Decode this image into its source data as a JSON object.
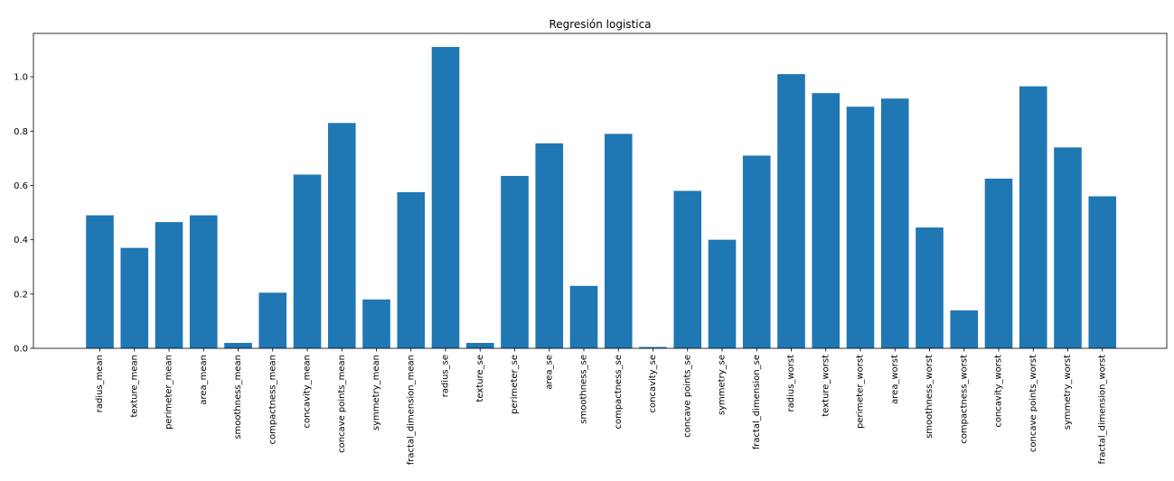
{
  "chart_data": {
    "type": "bar",
    "title": "Regresión logistica",
    "xlabel": "",
    "ylabel": "",
    "ylim": [
      0,
      1.16
    ],
    "yticks": [
      "0.0",
      "0.2",
      "0.4",
      "0.6",
      "0.8",
      "1.0"
    ],
    "grid": false,
    "bar_color": "#1f77b4",
    "categories": [
      "radius_mean",
      "texture_mean",
      "perimeter_mean",
      "area_mean",
      "smoothness_mean",
      "compactness_mean",
      "concavity_mean",
      "concave points_mean",
      "symmetry_mean",
      "fractal_dimension_mean",
      "radius_se",
      "texture_se",
      "perimeter_se",
      "area_se",
      "smoothness_se",
      "compactness_se",
      "concavity_se",
      "concave points_se",
      "symmetry_se",
      "fractal_dimension_se",
      "radius_worst",
      "texture_worst",
      "perimeter_worst",
      "area_worst",
      "smoothness_worst",
      "compactness_worst",
      "concavity_worst",
      "concave points_worst",
      "symmetry_worst",
      "fractal_dimension_worst"
    ],
    "values": [
      0.49,
      0.37,
      0.465,
      0.49,
      0.02,
      0.205,
      0.64,
      0.83,
      0.18,
      0.575,
      1.11,
      0.02,
      0.635,
      0.755,
      0.23,
      0.79,
      0.005,
      0.58,
      0.4,
      0.71,
      1.01,
      0.94,
      0.89,
      0.92,
      0.445,
      0.14,
      0.625,
      0.965,
      0.74,
      0.56
    ]
  }
}
